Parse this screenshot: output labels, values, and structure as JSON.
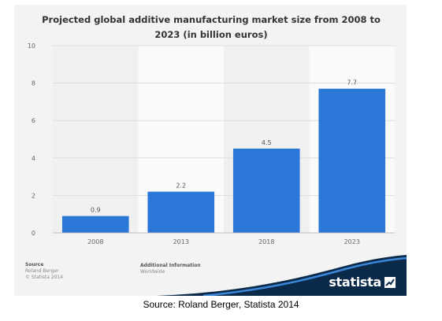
{
  "chart_data": {
    "type": "bar",
    "title": "Projected global additive manufacturing market size from 2008 to 2023 (in billion euros)",
    "categories": [
      "2008",
      "2013",
      "2018",
      "2023"
    ],
    "values": [
      0.9,
      2.2,
      4.5,
      7.7
    ],
    "value_labels": [
      "0.9",
      "2.2",
      "4.5",
      "7.7"
    ],
    "y_ticks": [
      "0",
      "2",
      "4",
      "6",
      "8",
      "10"
    ],
    "ylim": [
      0,
      10
    ],
    "grid": true,
    "bar_color": "#2a77d8"
  },
  "footer": {
    "source_heading": "Source",
    "source_lines": [
      "Roland Berger",
      "© Statista 2014"
    ],
    "info_heading": "Additional Information",
    "info_lines": [
      "Worldwide"
    ],
    "brand": "statista",
    "brand_icon": "statista-logo-icon"
  },
  "caption": "Source: Roland Berger, Statista 2014"
}
